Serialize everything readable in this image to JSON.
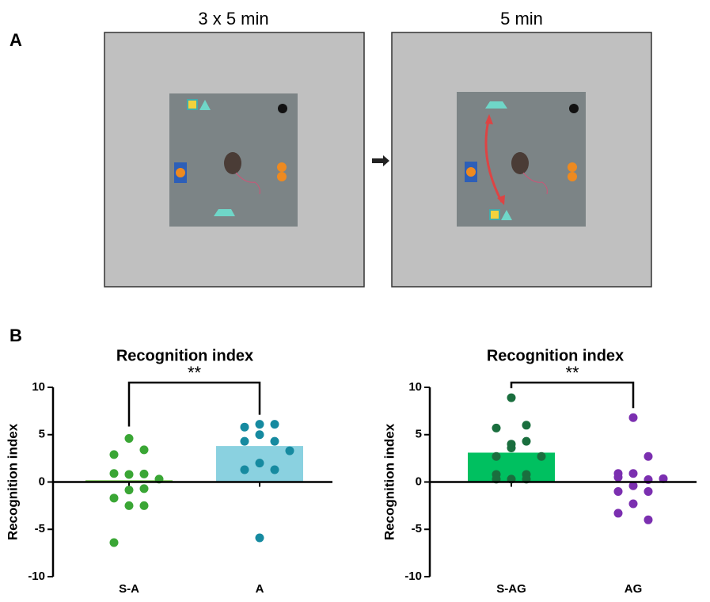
{
  "panel_a": {
    "label": "A",
    "titles": [
      "3 x 5 min",
      "5 min"
    ]
  },
  "panel_b": {
    "label": "B"
  },
  "chart_data": [
    {
      "type": "bar",
      "title": "Recognition index",
      "ylabel": "Recognition index",
      "categories": [
        "S-A",
        "A"
      ],
      "values": [
        0.2,
        3.8
      ],
      "colors": [
        "#8fd46e",
        "#8ad1e0"
      ],
      "points": [
        [
          4.6,
          3.4,
          2.9,
          0.8,
          0.85,
          0.9,
          0.3,
          -0.85,
          -0.7,
          -1.7,
          -2.5,
          -2.5,
          -6.4
        ],
        [
          6.1,
          6.1,
          5.8,
          5.0,
          4.3,
          4.3,
          3.3,
          2.0,
          1.3,
          1.3,
          -5.9
        ]
      ],
      "point_colors": [
        "#3aa635",
        "#168aa0"
      ],
      "annotation": "**",
      "ylim": [
        -10,
        10
      ],
      "yticks": [
        -10,
        -5,
        0,
        5,
        10
      ]
    },
    {
      "type": "bar",
      "title": "Recognition index",
      "ylabel": "Recognition index",
      "categories": [
        "S-AG",
        "AG"
      ],
      "values": [
        3.1,
        0
      ],
      "colors": [
        "#00c060",
        "#b58ad6"
      ],
      "points": [
        [
          8.9,
          6.0,
          5.7,
          4.0,
          4.3,
          2.7,
          2.7,
          3.6,
          0.8,
          0.8,
          0.3,
          0.3,
          0.3
        ],
        [
          6.8,
          2.7,
          0.9,
          0.9,
          0.25,
          0.5,
          0.35,
          -0.4,
          -1.0,
          -1.0,
          -2.3,
          -4.0,
          -3.3
        ]
      ],
      "point_colors": [
        "#1a6e3e",
        "#7b2fb0"
      ],
      "annotation": "**",
      "ylim": [
        -10,
        10
      ],
      "yticks": [
        -10,
        -5,
        0,
        5,
        10
      ]
    }
  ]
}
